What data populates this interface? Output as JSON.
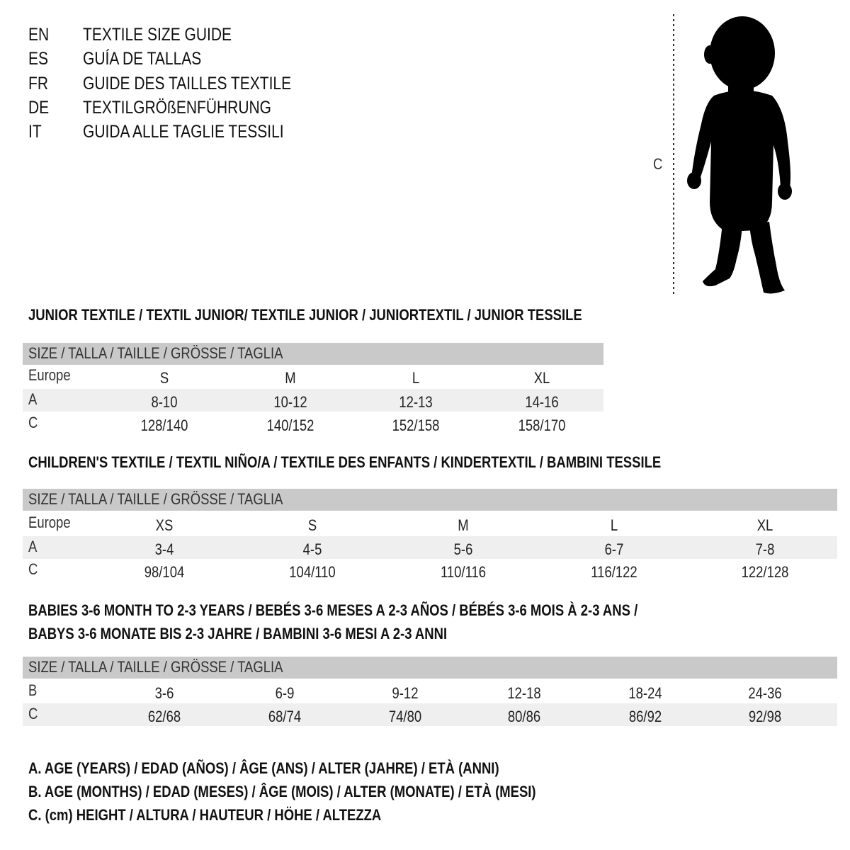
{
  "header": {
    "lines": [
      {
        "lang": "EN",
        "text": "TEXTILE SIZE GUIDE"
      },
      {
        "lang": "ES",
        "text": "GUÍA DE TALLAS"
      },
      {
        "lang": "FR",
        "text": "GUIDE DES TAILLES TEXTILE"
      },
      {
        "lang": "DE",
        "text": "TEXTILGRÖßENFÜHRUNG"
      },
      {
        "lang": "IT",
        "text": "GUIDA ALLE TAGLIE TESSILI"
      }
    ]
  },
  "figure": {
    "measure_label": "C",
    "icon": "child-silhouette-icon"
  },
  "colors": {
    "header_bar": "#c9c9c9",
    "row_band": "#efefef",
    "text": "#111111"
  },
  "tables": [
    {
      "title": [
        "JUNIOR TEXTILE / TEXTIL JUNIOR/ TEXTILE JUNIOR / JUNIORTEXTIL / JUNIOR TESSILE"
      ],
      "header": "SIZE / TALLA / TAILLE / GRÖSSE / TAGLIA",
      "rows": [
        {
          "label": "Europe",
          "values": [
            "S",
            "M",
            "L",
            "XL"
          ]
        },
        {
          "label": "A",
          "values": [
            "8-10",
            "10-12",
            "12-13",
            "14-16"
          ]
        },
        {
          "label": "C",
          "values": [
            "128/140",
            "140/152",
            "152/158",
            "158/170"
          ]
        }
      ]
    },
    {
      "title": [
        "CHILDREN'S TEXTILE / TEXTIL NIÑO/A / TEXTILE DES ENFANTS / KINDERTEXTIL / BAMBINI TESSILE"
      ],
      "header": "SIZE / TALLA / TAILLE / GRÖSSE / TAGLIA",
      "rows": [
        {
          "label": "Europe",
          "values": [
            "XS",
            "S",
            "M",
            "L",
            "XL"
          ]
        },
        {
          "label": "A",
          "values": [
            "3-4",
            "4-5",
            "5-6",
            "6-7",
            "7-8"
          ]
        },
        {
          "label": "C",
          "values": [
            "98/104",
            "104/110",
            "110/116",
            "116/122",
            "122/128"
          ]
        }
      ]
    },
    {
      "title": [
        "BABIES 3-6 MONTH TO 2-3 YEARS / BEBÉS 3-6 MESES A 2-3 AÑOS / BÉBÉS 3-6 MOIS À 2-3 ANS /",
        "BABYS 3-6 MONATE BIS 2-3 JAHRE / BAMBINI 3-6 MESI A 2-3 ANNI"
      ],
      "header": "SIZE / TALLA / TAILLE / GRÖSSE / TAGLIA",
      "rows": [
        {
          "label": "B",
          "values": [
            "3-6",
            "6-9",
            "9-12",
            "12-18",
            "18-24",
            "24-36"
          ]
        },
        {
          "label": "C",
          "values": [
            "62/68",
            "68/74",
            "74/80",
            "80/86",
            "86/92",
            "92/98"
          ]
        }
      ]
    }
  ],
  "legend": [
    "A. AGE (YEARS) / EDAD (AÑOS) / ÂGE (ANS) / ALTER (JAHRE) / ETÀ (ANNI)",
    "B. AGE (MONTHS) / EDAD (MESES) / ÂGE (MOIS) / ALTER (MONATE) / ETÀ (MESI)",
    "C. (cm) HEIGHT / ALTURA / HAUTEUR / HÖHE / ALTEZZA"
  ]
}
